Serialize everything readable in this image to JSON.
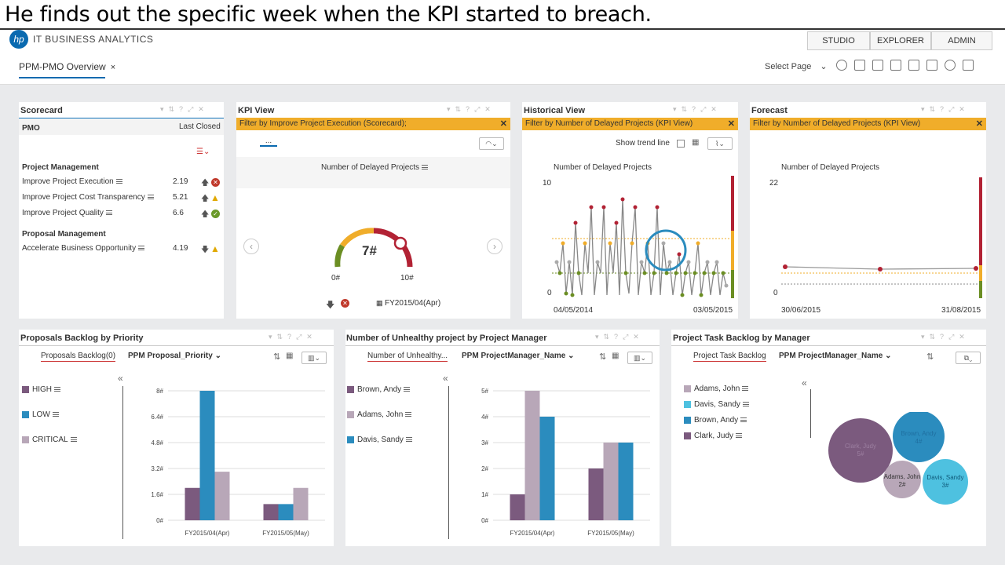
{
  "caption": "He finds out the specific week when the KPI started to breach.",
  "brand": {
    "mark": "hp",
    "text": "IT BUSINESS ANALYTICS"
  },
  "nav": [
    "STUDIO",
    "EXPLORER",
    "ADMIN"
  ],
  "page_tab": {
    "label": "PPM-PMO Overview",
    "close": "×"
  },
  "select_page": "Select Page",
  "scorecard": {
    "title": "Scorecard",
    "col1": "PMO",
    "col2": "Last Closed",
    "groups": [
      {
        "name": "Project Management",
        "items": [
          {
            "label": "Improve Project Execution",
            "value": "2.19",
            "status": "error"
          },
          {
            "label": "Improve Project Cost Transparency",
            "value": "5.21",
            "status": "warning"
          },
          {
            "label": "Improve Project Quality",
            "value": "6.6",
            "status": "ok"
          }
        ]
      },
      {
        "name": "Proposal Management",
        "items": [
          {
            "label": "Accelerate Business Opportunity",
            "value": "4.19",
            "status": "warning"
          }
        ]
      }
    ]
  },
  "kpi_view": {
    "title": "KPI View",
    "filter": "Filter by Improve Project Execution (Scorecard);",
    "tab": "...",
    "chart_title": "Number of Delayed Projects",
    "gauge_value": "7#",
    "gauge_min": "0#",
    "gauge_max": "10#",
    "period": "FY2015/04(Apr)",
    "colors": {
      "good": "#6b8e23",
      "warn": "#f0ad2a",
      "bad": "#b22234"
    }
  },
  "historical": {
    "title": "Historical View",
    "filter": "Filter by Number of Delayed Projects (KPI View)",
    "trend_label": "Show trend line",
    "chart_title": "Number of Delayed Projects",
    "y_max": "10",
    "y_min": "0",
    "x_start": "04/05/2014",
    "x_end": "03/05/2015"
  },
  "forecast": {
    "title": "Forecast",
    "filter": "Filter by Number of Delayed Projects (KPI View)",
    "chart_title": "Number of Delayed Projects",
    "y_max": "22",
    "y_min": "0",
    "x_start": "30/06/2015",
    "x_end": "31/08/2015"
  },
  "proposals": {
    "title": "Proposals Backlog by Priority",
    "tab": "Proposals Backlog(0)",
    "dim": "PPM Proposal_Priority",
    "legend": [
      {
        "label": "HIGH",
        "color": "#7b5a7e"
      },
      {
        "label": "LOW",
        "color": "#2b8cbe"
      },
      {
        "label": "CRITICAL",
        "color": "#b8a7b8"
      }
    ]
  },
  "unhealthy": {
    "title": "Number of Unhealthy project by Project Manager",
    "tab": "Number of Unhealthy...",
    "dim": "PPM ProjectManager_Name",
    "legend": [
      {
        "label": "Brown, Andy",
        "color": "#7b5a7e"
      },
      {
        "label": "Adams, John",
        "color": "#b8a7b8"
      },
      {
        "label": "Davis, Sandy",
        "color": "#2b8cbe"
      }
    ]
  },
  "task_backlog": {
    "title": "Project Task Backlog by Manager",
    "tab": "Project Task Backlog",
    "dim": "PPM ProjectManager_Name",
    "legend": [
      {
        "label": "Adams, John",
        "color": "#b8a7b8"
      },
      {
        "label": "Davis, Sandy",
        "color": "#4ec1e0"
      },
      {
        "label": "Brown, Andy",
        "color": "#2b8cbe"
      },
      {
        "label": "Clark, Judy",
        "color": "#7b5a7e"
      }
    ],
    "bubbles": [
      {
        "name": "Clark, Judy",
        "value": "5#"
      },
      {
        "name": "Brown, Andy",
        "value": "4#"
      },
      {
        "name": "Adams, John",
        "value": "2#"
      },
      {
        "name": "Davis, Sandy",
        "value": "3#"
      }
    ]
  },
  "chart_data": [
    {
      "type": "bar",
      "title": "Proposals Backlog by Priority",
      "categories": [
        "FY2015/04(Apr)",
        "FY2015/05(May)"
      ],
      "series": [
        {
          "name": "HIGH",
          "values": [
            2,
            1
          ]
        },
        {
          "name": "LOW",
          "values": [
            8,
            1
          ]
        },
        {
          "name": "CRITICAL",
          "values": [
            3,
            2
          ]
        }
      ],
      "ylim": [
        0,
        8
      ],
      "yticks": [
        "0#",
        "1.6#",
        "3.2#",
        "4.8#",
        "6.4#",
        "8#"
      ]
    },
    {
      "type": "bar",
      "title": "Number of Unhealthy project by Project Manager",
      "categories": [
        "FY2015/04(Apr)",
        "FY2015/05(May)"
      ],
      "series": [
        {
          "name": "Brown, Andy",
          "values": [
            1,
            2
          ]
        },
        {
          "name": "Adams, John",
          "values": [
            5,
            3
          ]
        },
        {
          "name": "Davis, Sandy",
          "values": [
            4,
            3
          ]
        }
      ],
      "ylim": [
        0,
        5
      ],
      "yticks": [
        "0#",
        "1#",
        "2#",
        "3#",
        "4#",
        "5#"
      ]
    }
  ]
}
